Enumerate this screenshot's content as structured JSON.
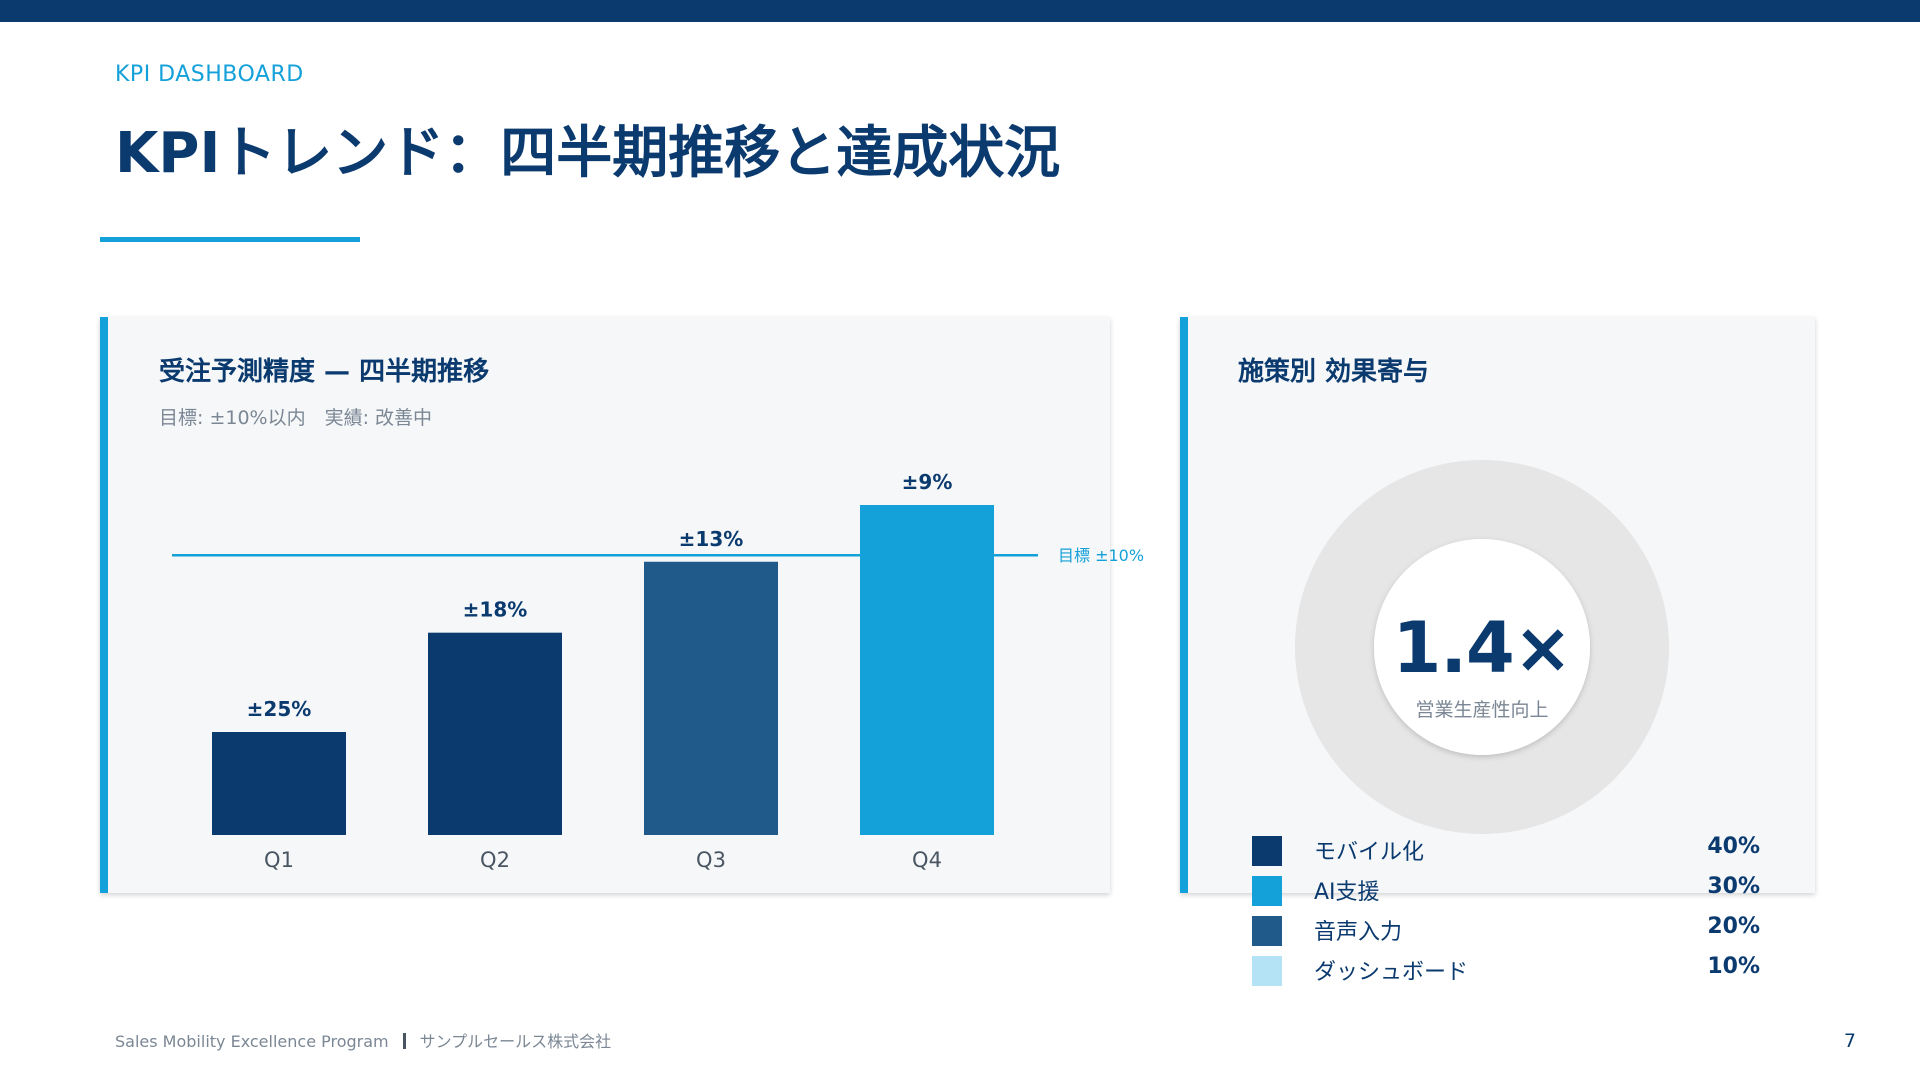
{
  "header": {
    "eyebrow": "KPI DASHBOARD",
    "title": "KPIトレンド：四半期推移と達成状況"
  },
  "left_card": {
    "title": "受注予測精度 — 四半期推移",
    "subtitle": "目標: ±10%以内　実績: 改善中"
  },
  "right_card": {
    "title": "施策別 効果寄与",
    "kpi_value": "1.4×",
    "kpi_label": "営業生産性向上",
    "legend": [
      {
        "label": "モバイル化",
        "value": "40%",
        "color": "#0b3a6f"
      },
      {
        "label": "AI支援",
        "value": "30%",
        "color": "#14a0d9"
      },
      {
        "label": "音声入力",
        "value": "20%",
        "color": "#205a8a"
      },
      {
        "label": "ダッシュボード",
        "value": "10%",
        "color": "#b3e3f4"
      }
    ]
  },
  "footer": {
    "program": "Sales Mobility Excellence Program",
    "company": "サンプルセールス株式会社",
    "page": "7"
  },
  "chart_data": [
    {
      "type": "bar",
      "title": "受注予測精度 — 四半期推移",
      "categories": [
        "Q1",
        "Q2",
        "Q3",
        "Q4"
      ],
      "values": [
        25,
        18,
        13,
        9
      ],
      "value_labels": [
        "±25%",
        "±18%",
        "±13%",
        "±9%"
      ],
      "colors": [
        "#0b3a6f",
        "#0b3a6f",
        "#205a8a",
        "#14a0d9"
      ],
      "target": {
        "value": 10,
        "label": "目標 ±10%"
      },
      "legend": "none",
      "grid": false
    },
    {
      "type": "pie",
      "title": "施策別 効果寄与",
      "categories": [
        "モバイル化",
        "AI支援",
        "音声入力",
        "ダッシュボード"
      ],
      "values": [
        40,
        30,
        20,
        10
      ],
      "colors": [
        "#0b3a6f",
        "#14a0d9",
        "#205a8a",
        "#b3e3f4"
      ],
      "center_value": "1.4×",
      "center_label": "営業生産性向上",
      "legend": "bottom"
    }
  ]
}
